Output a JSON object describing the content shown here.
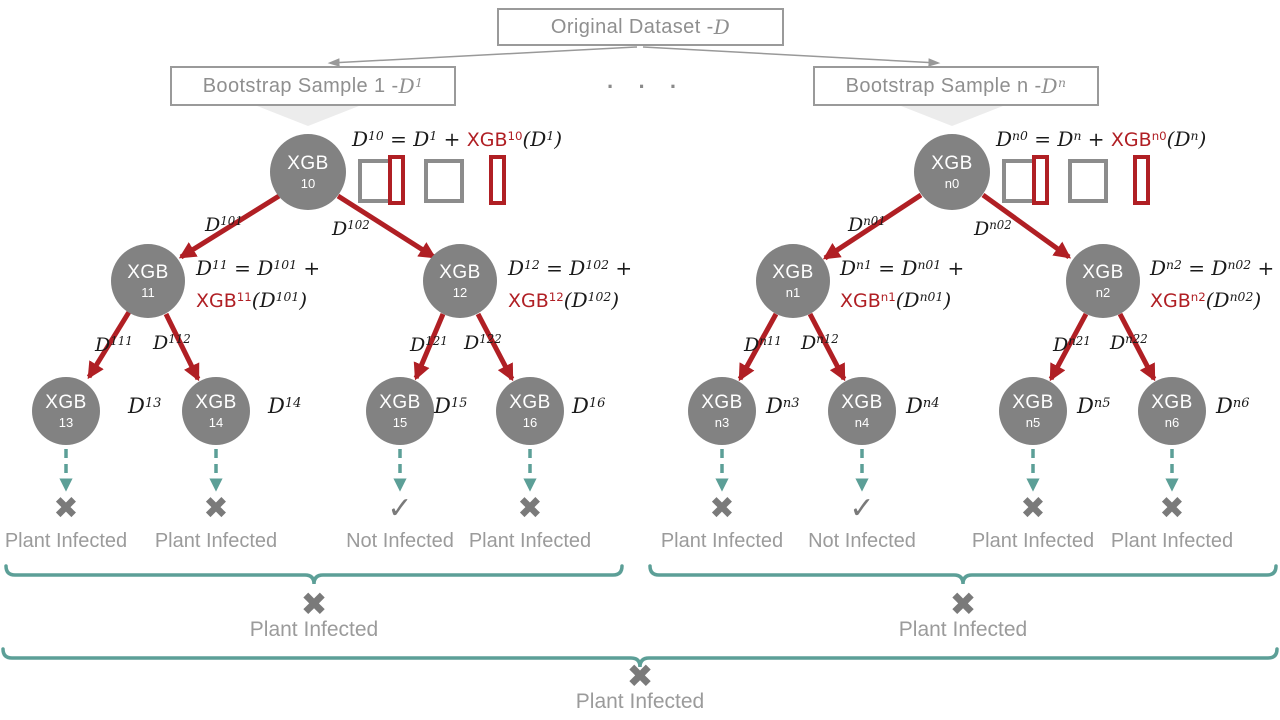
{
  "colors": {
    "accent_red": "#B01F24",
    "teal": "#5C9F97",
    "node_gray": "#828282",
    "label_gray": "#9b9b9b"
  },
  "header": {
    "original_dataset": {
      "text": "Original Dataset - ",
      "math": "D"
    },
    "bootstrap_1": {
      "text": "Bootstrap Sample 1 - ",
      "math": "D^{1}"
    },
    "bootstrap_n": {
      "text": "Bootstrap Sample n - ",
      "math": "D^{n}"
    },
    "ellipsis": "· · ·"
  },
  "left_tree": {
    "root": {
      "name": "XGB",
      "id": "10",
      "formula": "D^{10} = D^{1} + !XGB^{10}!(D^{1})"
    },
    "edges_l1": [
      "D^{101}",
      "D^{102}"
    ],
    "nodes": [
      {
        "name": "XGB",
        "id": "11",
        "formula1": "D^{11} = D^{101} +",
        "formula2": "!XGB^{11}!(D^{101})"
      },
      {
        "name": "XGB",
        "id": "12",
        "formula1": "D^{12} = D^{102} +",
        "formula2": "!XGB^{12}!(D^{102})"
      }
    ],
    "edges_l2": [
      "D^{111}",
      "D^{112}",
      "D^{121}",
      "D^{122}"
    ],
    "leaves": [
      {
        "name": "XGB",
        "id": "13",
        "dataset": "D^{13}",
        "mark": "✖",
        "verdict": "Plant Infected"
      },
      {
        "name": "XGB",
        "id": "14",
        "dataset": "D^{14}",
        "mark": "✖",
        "verdict": "Plant Infected"
      },
      {
        "name": "XGB",
        "id": "15",
        "dataset": "D^{15}",
        "mark": "✓",
        "verdict": "Not Infected"
      },
      {
        "name": "XGB",
        "id": "16",
        "dataset": "D^{16}",
        "mark": "✖",
        "verdict": "Plant Infected"
      }
    ],
    "aggregate": {
      "mark": "✖",
      "verdict": "Plant Infected"
    }
  },
  "right_tree": {
    "root": {
      "name": "XGB",
      "id": "n0",
      "formula": "D^{n0} = D^{n} + !XGB^{n0}!(D^{n})"
    },
    "edges_l1": [
      "D^{n01}",
      "D^{n02}"
    ],
    "nodes": [
      {
        "name": "XGB",
        "id": "n1",
        "formula1": "D^{n1} = D^{n01} +",
        "formula2": "!XGB^{n1}!(D^{n01})"
      },
      {
        "name": "XGB",
        "id": "n2",
        "formula1": "D^{n2} = D^{n02} +",
        "formula2": "!XGB^{n2}!(D^{n02})"
      }
    ],
    "edges_l2": [
      "D^{n11}",
      "D^{n12}",
      "D^{n21}",
      "D^{n22}"
    ],
    "leaves": [
      {
        "name": "XGB",
        "id": "n3",
        "dataset": "D^{n3}",
        "mark": "✖",
        "verdict": "Plant Infected"
      },
      {
        "name": "XGB",
        "id": "n4",
        "dataset": "D^{n4}",
        "mark": "✓",
        "verdict": "Not Infected"
      },
      {
        "name": "XGB",
        "id": "n5",
        "dataset": "D^{n5}",
        "mark": "✖",
        "verdict": "Plant Infected"
      },
      {
        "name": "XGB",
        "id": "n6",
        "dataset": "D^{n6}",
        "mark": "✖",
        "verdict": "Plant Infected"
      }
    ],
    "aggregate": {
      "mark": "✖",
      "verdict": "Plant Infected"
    }
  },
  "final": {
    "mark": "✖",
    "verdict": "Plant Infected"
  }
}
